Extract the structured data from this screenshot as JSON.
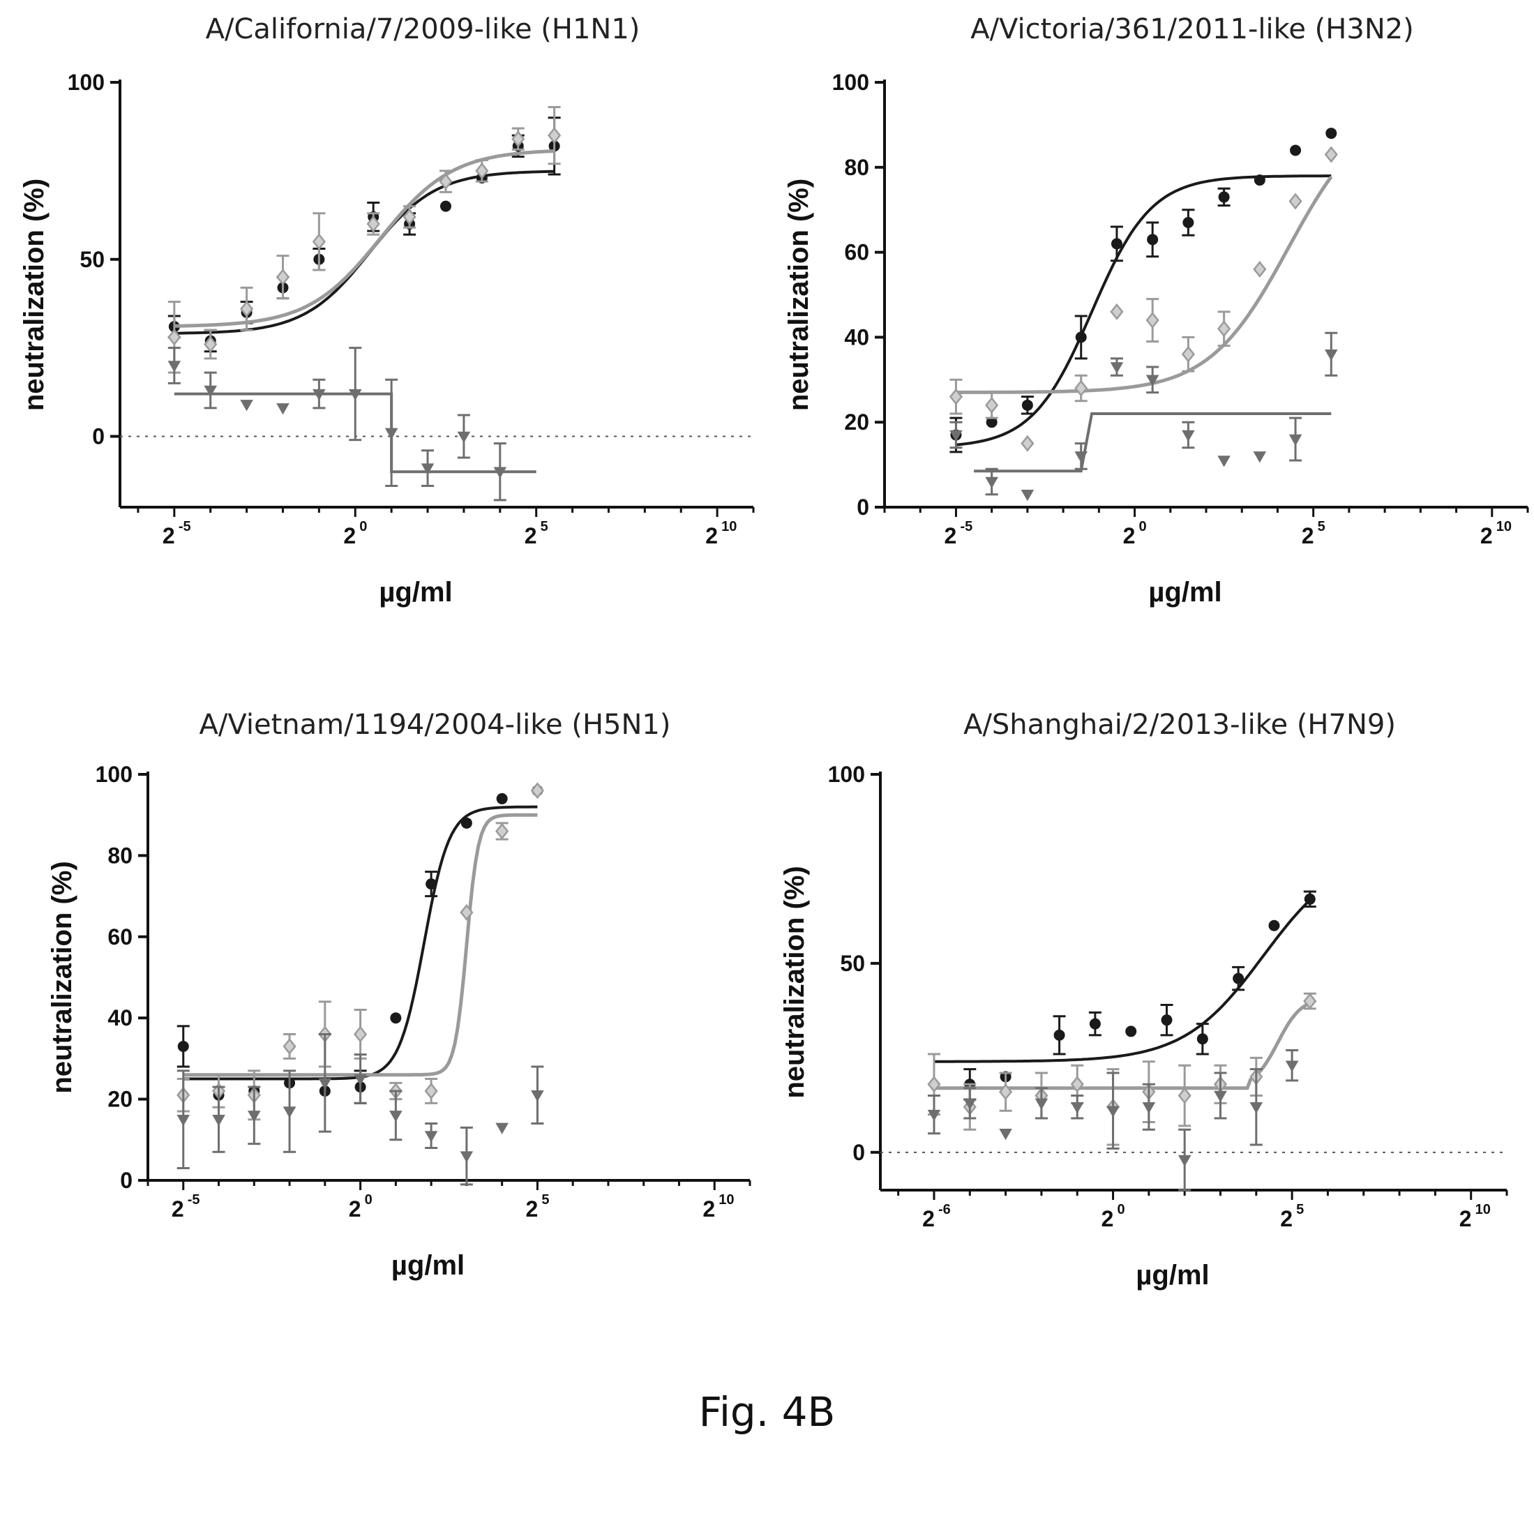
{
  "figure_caption": "Fig. 4B",
  "colors": {
    "dark": "#1a1a1a",
    "mid": "#6e6e6e",
    "light": "#9a9a9a",
    "zero_line": "#555555"
  },
  "chart_data": [
    {
      "type": "scatter",
      "title": "A/California/7/2009-like  (H1N1)",
      "xlabel": "µg/ml",
      "ylabel": "neutralization (%)",
      "xscale": "log2",
      "xlim": [
        -6.5,
        11
      ],
      "ylim": [
        -20,
        100
      ],
      "yticks": [
        0,
        50,
        100
      ],
      "xticks": [
        {
          "exp": -5,
          "label": "2",
          "sup": "-5"
        },
        {
          "exp": 0,
          "label": "2",
          "sup": "0"
        },
        {
          "exp": 5,
          "label": "2",
          "sup": "5"
        },
        {
          "exp": 10,
          "label": "2",
          "sup": "10"
        }
      ],
      "zero_line": true,
      "series": [
        {
          "style": "dark",
          "marker": "circle",
          "points": [
            [
              -5,
              31
            ],
            [
              -4,
              27
            ],
            [
              -3,
              35
            ],
            [
              -2,
              42
            ],
            [
              -1,
              50
            ],
            [
              0.5,
              62
            ],
            [
              1.5,
              60
            ],
            [
              2.5,
              65
            ],
            [
              3.5,
              73
            ],
            [
              4.5,
              82
            ],
            [
              5.5,
              82
            ]
          ],
          "errors": [
            3,
            3,
            3,
            3,
            3,
            4,
            3,
            0,
            0,
            3,
            8
          ],
          "fit": {
            "kind": "sigmoid",
            "bottom": 29,
            "top": 75,
            "mid": 0.4,
            "slope": 1.1,
            "x0": -5,
            "x1": 5.5
          }
        },
        {
          "style": "light",
          "marker": "diamond",
          "points": [
            [
              -5,
              28
            ],
            [
              -4,
              26
            ],
            [
              -3,
              36
            ],
            [
              -2,
              45
            ],
            [
              -1,
              55
            ],
            [
              0.5,
              60
            ],
            [
              1.5,
              62
            ],
            [
              2.5,
              72
            ],
            [
              3.5,
              75
            ],
            [
              4.5,
              84
            ],
            [
              5.5,
              85
            ]
          ],
          "errors": [
            10,
            4,
            6,
            6,
            8,
            3,
            3,
            3,
            3,
            3,
            8
          ],
          "fit": {
            "kind": "sigmoid",
            "bottom": 31,
            "top": 81,
            "mid": 0.7,
            "slope": 1.0,
            "x0": -5,
            "x1": 5.5
          }
        },
        {
          "style": "mid",
          "marker": "triangle",
          "points": [
            [
              -5,
              20
            ],
            [
              -4,
              13
            ],
            [
              -3,
              9
            ],
            [
              -2,
              8
            ],
            [
              -1,
              12
            ],
            [
              0,
              12
            ],
            [
              1,
              1
            ],
            [
              2,
              -9
            ],
            [
              3,
              0
            ],
            [
              4,
              -10
            ]
          ],
          "errors": [
            5,
            5,
            0,
            0,
            4,
            13,
            15,
            5,
            6,
            8
          ],
          "fit": {
            "kind": "step",
            "segments": [
              [
                -5,
                1,
                12
              ],
              [
                1,
                5,
                -10
              ]
            ]
          }
        }
      ]
    },
    {
      "type": "scatter",
      "title": "A/Victoria/361/2011-like  (H3N2)",
      "xlabel": "µg/ml",
      "ylabel": "neutralization (%)",
      "xscale": "log2",
      "xlim": [
        -7,
        11
      ],
      "ylim": [
        0,
        100
      ],
      "yticks": [
        0,
        20,
        40,
        60,
        80,
        100
      ],
      "xticks": [
        {
          "exp": -5,
          "label": "2",
          "sup": "-5"
        },
        {
          "exp": 0,
          "label": "2",
          "sup": "0"
        },
        {
          "exp": 5,
          "label": "2",
          "sup": "5"
        },
        {
          "exp": 10,
          "label": "2",
          "sup": "10"
        }
      ],
      "zero_line": false,
      "series": [
        {
          "style": "dark",
          "marker": "circle",
          "points": [
            [
              -5,
              17
            ],
            [
              -4,
              20
            ],
            [
              -3,
              24
            ],
            [
              -1.5,
              40
            ],
            [
              -0.5,
              62
            ],
            [
              0.5,
              63
            ],
            [
              1.5,
              67
            ],
            [
              2.5,
              73
            ],
            [
              3.5,
              77
            ],
            [
              4.5,
              84
            ],
            [
              5.5,
              88
            ]
          ],
          "errors": [
            4,
            0,
            2,
            5,
            4,
            4,
            3,
            2,
            0,
            0,
            0
          ],
          "fit": {
            "kind": "sigmoid",
            "bottom": 14,
            "top": 78,
            "mid": -1.2,
            "slope": 1.2,
            "x0": -5,
            "x1": 5.5
          }
        },
        {
          "style": "light",
          "marker": "diamond",
          "points": [
            [
              -5,
              26
            ],
            [
              -4,
              24
            ],
            [
              -3,
              15
            ],
            [
              -1.5,
              28
            ],
            [
              -0.5,
              46
            ],
            [
              0.5,
              44
            ],
            [
              1.5,
              36
            ],
            [
              2.5,
              42
            ],
            [
              3.5,
              56
            ],
            [
              4.5,
              72
            ],
            [
              5.5,
              83
            ]
          ],
          "errors": [
            4,
            3,
            0,
            3,
            0,
            5,
            4,
            4,
            0,
            0,
            0
          ],
          "fit": {
            "kind": "sigmoid",
            "bottom": 27,
            "top": 95,
            "mid": 4.3,
            "slope": 0.9,
            "x0": -5,
            "x1": 5.5
          }
        },
        {
          "style": "mid",
          "marker": "triangle",
          "points": [
            [
              -5,
              17
            ],
            [
              -4,
              6
            ],
            [
              -3,
              3
            ],
            [
              -1.5,
              12
            ],
            [
              -0.5,
              33
            ],
            [
              0.5,
              30
            ],
            [
              1.5,
              17
            ],
            [
              2.5,
              11
            ],
            [
              3.5,
              12
            ],
            [
              4.5,
              16
            ],
            [
              5.5,
              36
            ]
          ],
          "errors": [
            3,
            3,
            0,
            3,
            2,
            3,
            3,
            0,
            0,
            5,
            5
          ],
          "fit": {
            "kind": "step",
            "segments": [
              [
                -4.5,
                -1.5,
                8.5
              ],
              [
                -1.2,
                5.5,
                22
              ]
            ]
          }
        }
      ]
    },
    {
      "type": "scatter",
      "title": "A/Vietnam/1194/2004-like (H5N1)",
      "xlabel": "µg/ml",
      "ylabel": "neutralization (%)",
      "xscale": "log2",
      "xlim": [
        -6,
        11
      ],
      "ylim": [
        0,
        100
      ],
      "yticks": [
        0,
        20,
        40,
        60,
        80,
        100
      ],
      "xticks": [
        {
          "exp": -5,
          "label": "2",
          "sup": "-5"
        },
        {
          "exp": 0,
          "label": "2",
          "sup": "0"
        },
        {
          "exp": 5,
          "label": "2",
          "sup": "5"
        },
        {
          "exp": 10,
          "label": "2",
          "sup": "10"
        }
      ],
      "zero_line": false,
      "series": [
        {
          "style": "dark",
          "marker": "circle",
          "points": [
            [
              -5,
              33
            ],
            [
              -4,
              21
            ],
            [
              -3,
              22
            ],
            [
              -2,
              24
            ],
            [
              -1,
              22
            ],
            [
              0,
              23
            ],
            [
              1,
              40
            ],
            [
              2,
              73
            ],
            [
              3,
              88
            ],
            [
              4,
              94
            ],
            [
              5,
              96
            ]
          ],
          "errors": [
            5,
            0,
            0,
            0,
            0,
            4,
            0,
            3,
            0,
            0,
            0
          ],
          "fit": {
            "kind": "sigmoid",
            "bottom": 25,
            "top": 92,
            "mid": 1.8,
            "slope": 2.8,
            "x0": -5,
            "x1": 5
          }
        },
        {
          "style": "light",
          "marker": "diamond",
          "points": [
            [
              -5,
              21
            ],
            [
              -4,
              22
            ],
            [
              -3,
              21
            ],
            [
              -2,
              33
            ],
            [
              -1,
              36
            ],
            [
              0,
              36
            ],
            [
              1,
              22
            ],
            [
              2,
              22
            ],
            [
              3,
              66
            ],
            [
              4,
              86
            ],
            [
              5,
              96
            ]
          ],
          "errors": [
            4,
            4,
            6,
            3,
            8,
            6,
            2,
            3,
            0,
            2,
            0
          ],
          "fit": {
            "kind": "sigmoid",
            "bottom": 26,
            "top": 90,
            "mid": 3.0,
            "slope": 6.0,
            "x0": -5,
            "x1": 5
          }
        },
        {
          "style": "mid",
          "marker": "triangle",
          "points": [
            [
              -5,
              15
            ],
            [
              -4,
              15
            ],
            [
              -3,
              16
            ],
            [
              -2,
              17
            ],
            [
              -1,
              24
            ],
            [
              0,
              25
            ],
            [
              1,
              16
            ],
            [
              2,
              11
            ],
            [
              3,
              6
            ],
            [
              4,
              13
            ],
            [
              5,
              21
            ]
          ],
          "errors": [
            12,
            8,
            7,
            10,
            12,
            6,
            6,
            3,
            7,
            0,
            7
          ],
          "fit": null
        }
      ]
    },
    {
      "type": "scatter",
      "title": "A/Shanghai/2/2013-like (H7N9)",
      "xlabel": "µg/ml",
      "ylabel": "neutralization (%)",
      "xscale": "log2",
      "xlim": [
        -6.5,
        11
      ],
      "ylim": [
        -10,
        100
      ],
      "yticks": [
        0,
        50,
        100
      ],
      "xticks": [
        {
          "exp": -5,
          "label": "2",
          "sup": "-6"
        },
        {
          "exp": 0,
          "label": "2",
          "sup": "0"
        },
        {
          "exp": 5,
          "label": "2",
          "sup": "5"
        },
        {
          "exp": 10,
          "label": "2",
          "sup": "10"
        }
      ],
      "zero_line": true,
      "series": [
        {
          "style": "dark",
          "marker": "circle",
          "points": [
            [
              -4,
              18
            ],
            [
              -3,
              20
            ],
            [
              -1.5,
              31
            ],
            [
              -0.5,
              34
            ],
            [
              0.5,
              32
            ],
            [
              1.5,
              35
            ],
            [
              2.5,
              30
            ],
            [
              3.5,
              46
            ],
            [
              4.5,
              60
            ],
            [
              5.5,
              67
            ]
          ],
          "errors": [
            4,
            0,
            5,
            3,
            0,
            4,
            4,
            3,
            0,
            2
          ],
          "fit": {
            "kind": "sigmoid",
            "bottom": 24,
            "top": 80,
            "mid": 4.2,
            "slope": 0.9,
            "x0": -5,
            "x1": 5.5
          }
        },
        {
          "style": "light",
          "marker": "diamond",
          "points": [
            [
              -5,
              18
            ],
            [
              -4,
              12
            ],
            [
              -3,
              16
            ],
            [
              -2,
              15
            ],
            [
              -1,
              18
            ],
            [
              0,
              12
            ],
            [
              1,
              16
            ],
            [
              2,
              15
            ],
            [
              3,
              18
            ],
            [
              4,
              20
            ],
            [
              5.5,
              40
            ]
          ],
          "errors": [
            8,
            6,
            5,
            6,
            5,
            10,
            8,
            8,
            5,
            5,
            2
          ],
          "fit": {
            "kind": "steplogistic",
            "flat": 17,
            "xflat": 3.8,
            "bottom": 17,
            "top": 41,
            "mid": 4.6,
            "slope": 3.0,
            "x0": -5,
            "x1": 5.5
          }
        },
        {
          "style": "mid",
          "marker": "triangle",
          "points": [
            [
              -5,
              10
            ],
            [
              -4,
              13
            ],
            [
              -3,
              5
            ],
            [
              -2,
              13
            ],
            [
              -1,
              12
            ],
            [
              0,
              11
            ],
            [
              1,
              12
            ],
            [
              2,
              -2
            ],
            [
              3,
              15
            ],
            [
              4,
              12
            ],
            [
              5,
              23
            ]
          ],
          "errors": [
            5,
            4,
            0,
            4,
            3,
            10,
            6,
            8,
            6,
            10,
            4
          ],
          "fit": null
        }
      ]
    }
  ]
}
